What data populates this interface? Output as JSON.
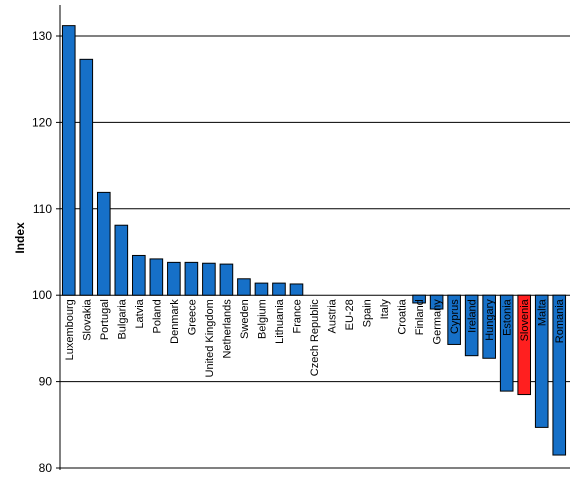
{
  "chart_data": {
    "type": "bar",
    "ylabel": "Index",
    "xlabel": "",
    "title": "",
    "ylim": [
      80,
      130
    ],
    "yticks": [
      80,
      90,
      100,
      110,
      120,
      130
    ],
    "baseline": 100,
    "grid": true,
    "categories": [
      "Luxembourg",
      "Slovakia",
      "Portugal",
      "Bulgaria",
      "Latvia",
      "Poland",
      "Denmark",
      "Greece",
      "United Kingdom",
      "Netherlands",
      "Sweden",
      "Belgium",
      "Lithuania",
      "France",
      "Czech Republic",
      "Austria",
      "EU-28",
      "Spain",
      "Italy",
      "Croatia",
      "Finland",
      "Germany",
      "Cyprus",
      "Ireland",
      "Hungary",
      "Estonia",
      "Slovenia",
      "Malta",
      "Romania"
    ],
    "values": [
      131.2,
      127.3,
      111.9,
      108.1,
      104.6,
      104.2,
      103.8,
      103.8,
      103.7,
      103.6,
      101.9,
      101.4,
      101.4,
      101.3,
      100,
      100,
      100,
      100,
      100,
      100,
      99.1,
      98.4,
      94.3,
      93.0,
      92.7,
      88.9,
      88.5,
      84.7,
      81.5
    ],
    "colors": {
      "default": "#1670c8",
      "highlight": "#ff1f1f",
      "highlight_category": "Slovenia",
      "edge": "#000000",
      "grid": "#000000"
    }
  }
}
